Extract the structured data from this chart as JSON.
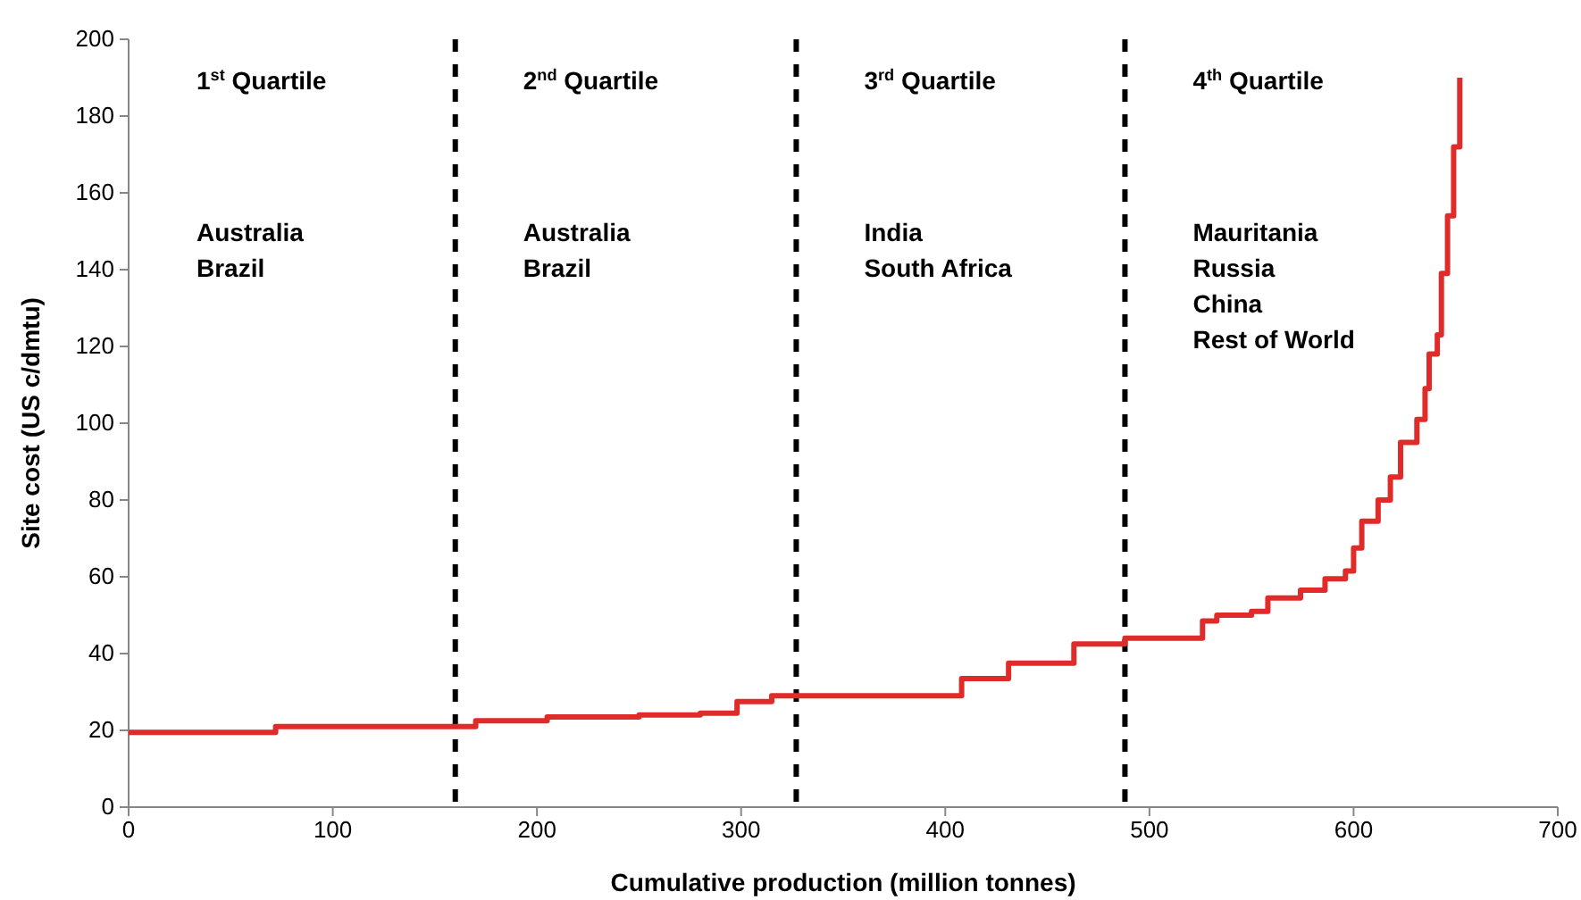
{
  "chart_data": {
    "type": "step",
    "xlabel": "Cumulative production (million tonnes)",
    "ylabel": "Site cost (US c/dmtu)",
    "xlim": [
      0,
      700
    ],
    "xticks": [
      0,
      100,
      200,
      300,
      400,
      500,
      600,
      700
    ],
    "ylim": [
      0,
      200
    ],
    "yticks": [
      0,
      20,
      40,
      60,
      80,
      100,
      120,
      140,
      160,
      180,
      200
    ],
    "grid": false,
    "marker": "none",
    "line_style": "solid",
    "series": [
      {
        "color": "#e02b2b",
        "x": [
          0,
          72,
          170,
          205,
          250,
          280,
          298,
          315,
          408,
          431,
          463,
          488,
          526,
          533,
          550,
          558,
          574,
          586,
          596,
          600,
          604,
          612,
          618,
          623,
          631,
          635,
          637,
          641,
          643,
          646,
          649,
          652
        ],
        "values": [
          19.5,
          21,
          22.5,
          23.5,
          24,
          24.5,
          27.5,
          29,
          33.5,
          37.5,
          42.5,
          44,
          48.5,
          50,
          51,
          54.5,
          56.5,
          59.5,
          61.5,
          67.5,
          74.5,
          80,
          86,
          95,
          101,
          109,
          118,
          123,
          139,
          154,
          172,
          190
        ]
      }
    ],
    "ref_lines": [
      {
        "axis": "x",
        "value": 160,
        "color": "#000000",
        "line_style": "dashed"
      },
      {
        "axis": "x",
        "value": 327,
        "color": "#000000",
        "line_style": "dashed"
      },
      {
        "axis": "x",
        "value": 488,
        "color": "#000000",
        "line_style": "dashed"
      }
    ],
    "annotations": [
      "1$^{st}$ Quartile",
      "Australia\nBrazil",
      "2$^{nd}$ Quartile",
      "Australia\nBrazil",
      "3$^{rd}$ Quartile",
      "India\nSouth Africa",
      "4$^{th}$ Quartile",
      "Mauritania\nRussia\nChina\nRest of World"
    ]
  }
}
